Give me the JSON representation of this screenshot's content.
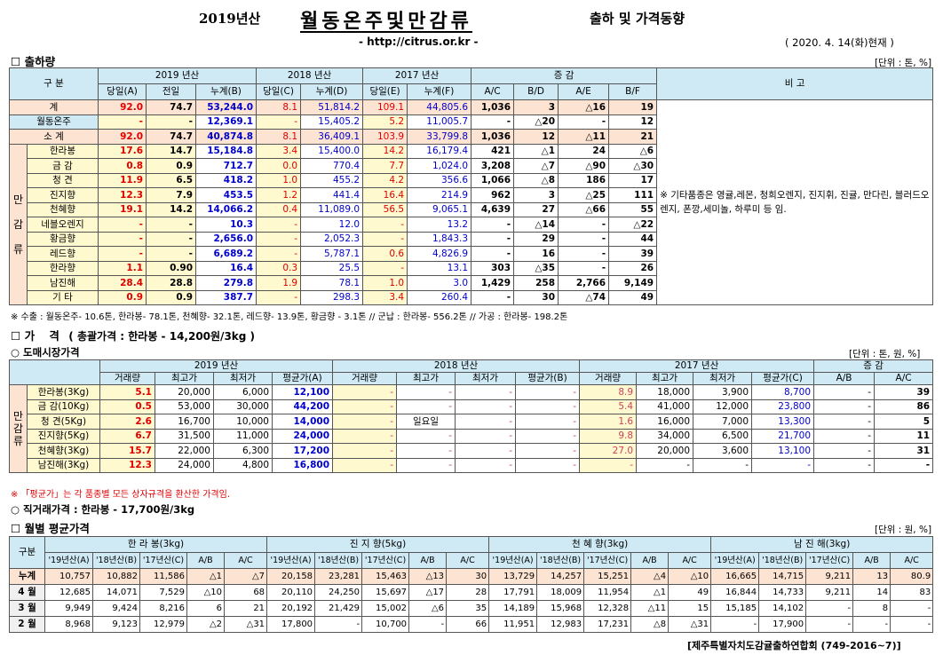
{
  "header": {
    "title_prefix": "2019년산",
    "title_main": "월동온주및만감류",
    "title_suffix": "출하 및 가격동향",
    "url": "- http://citrus.or.kr -",
    "date": "( 2020. 4. 14(화)현재 )"
  },
  "sec1": {
    "title": "출하량",
    "unit": "[단위 : 톤, %]",
    "h_gubun": "구  분",
    "h_y2019": "2019 년산",
    "h_y2018": "2018 년산",
    "h_y2017": "2017 년산",
    "h_inc": "증  감",
    "h_bigo": "비 고",
    "sub": [
      "당일(A)",
      "전일",
      "누계(B)",
      "당일(C)",
      "누계(D)",
      "당일(E)",
      "누계(F)",
      "A/C",
      "B/D",
      "A/E",
      "B/F"
    ],
    "side_label": [
      "만",
      "감",
      "류"
    ],
    "rows": [
      {
        "name": "계",
        "v": [
          "92.0",
          "74.7",
          "53,244.0",
          "8.1",
          "51,814.2",
          "109.1",
          "44,805.6",
          "1,036",
          "3",
          "△16",
          "19"
        ]
      },
      {
        "name": "월동온주",
        "v": [
          "-",
          "-",
          "12,369.1",
          "-",
          "15,405.2",
          "5.2",
          "11,005.7",
          "-",
          "△20",
          "-",
          "12"
        ]
      },
      {
        "name": "소  계",
        "v": [
          "92.0",
          "74.7",
          "40,874.8",
          "8.1",
          "36,409.1",
          "103.9",
          "33,799.8",
          "1,036",
          "12",
          "△11",
          "21"
        ]
      },
      {
        "name": "한라봉",
        "v": [
          "17.6",
          "14.7",
          "15,184.8",
          "3.4",
          "15,400.0",
          "14.2",
          "16,179.4",
          "421",
          "△1",
          "24",
          "△6"
        ]
      },
      {
        "name": "금  감",
        "v": [
          "0.8",
          "0.9",
          "712.7",
          "0.0",
          "770.4",
          "7.7",
          "1,024.0",
          "3,208",
          "△7",
          "△90",
          "△30"
        ]
      },
      {
        "name": "청  견",
        "v": [
          "11.9",
          "6.5",
          "418.2",
          "1.0",
          "455.2",
          "4.2",
          "356.6",
          "1,066",
          "△8",
          "186",
          "17"
        ]
      },
      {
        "name": "진지향",
        "v": [
          "12.3",
          "7.9",
          "453.5",
          "1.2",
          "441.4",
          "16.4",
          "214.9",
          "962",
          "3",
          "△25",
          "111"
        ]
      },
      {
        "name": "천혜향",
        "v": [
          "19.1",
          "14.2",
          "14,066.2",
          "0.4",
          "11,089.0",
          "56.5",
          "9,065.1",
          "4,639",
          "27",
          "△66",
          "55"
        ]
      },
      {
        "name": "네블오렌지",
        "v": [
          "-",
          "-",
          "10.3",
          "-",
          "12.0",
          "-",
          "13.2",
          "-",
          "△14",
          "-",
          "△22"
        ]
      },
      {
        "name": "황금향",
        "v": [
          "-",
          "-",
          "2,656.0",
          "-",
          "2,052.3",
          "-",
          "1,843.3",
          "-",
          "29",
          "-",
          "44"
        ]
      },
      {
        "name": "레드향",
        "v": [
          "-",
          "-",
          "6,689.2",
          "-",
          "5,787.1",
          "0.6",
          "4,826.9",
          "-",
          "16",
          "-",
          "39"
        ]
      },
      {
        "name": "한라향",
        "v": [
          "1.1",
          "0.90",
          "16.4",
          "0.3",
          "25.5",
          "-",
          "13.1",
          "303",
          "△35",
          "-",
          "26"
        ]
      },
      {
        "name": "남진해",
        "v": [
          "28.4",
          "28.8",
          "279.8",
          "1.9",
          "78.1",
          "1.0",
          "3.0",
          "1,429",
          "258",
          "2,766",
          "9,149"
        ]
      },
      {
        "name": "기  타",
        "v": [
          "0.9",
          "0.9",
          "387.7",
          "-",
          "298.3",
          "3.4",
          "260.4",
          "-",
          "30",
          "△74",
          "49"
        ]
      }
    ],
    "bigo_text": "※ 기타품종은 영귤,레몬, 청희오렌지, 진지휘, 진귤, 만다린, 블러드오렌지, 폰깡,세미놀, 하루미 등 임.",
    "note": "※ 수출 : 월동온주- 10.6톤, 한라봉- 78.1톤, 천혜향- 32.1톤, 레드향- 13.9톤, 황금향 - 3.1톤  // 군납 : 한라봉- 556.2톤 // 가공 : 한라봉- 198.2톤"
  },
  "sec2": {
    "title": "가  격",
    "subtitle": "( 총괄가격 : 한라봉 - 14,200원/3kg )",
    "sub_title": "○ 도매시장가격",
    "unit": "[단위 : 톤, 원, %]",
    "h_y2019": "2019 년산",
    "h_y2018": "2018 년산",
    "h_y2017": "2017 년산",
    "h_inc": "증  감",
    "sub": [
      "거래량",
      "최고가",
      "최저가",
      "평균가(A)",
      "거래량",
      "최고가",
      "최저가",
      "평균가(B)",
      "거래량",
      "최고가",
      "최저가",
      "평균가(C)",
      "A/B",
      "A/C"
    ],
    "side_label": [
      "만",
      "감",
      "류"
    ],
    "rows": [
      {
        "name": "한라봉(3Kg)",
        "v": [
          "5.1",
          "20,000",
          "6,000",
          "12,100",
          "-",
          "-",
          "-",
          "-",
          "8.9",
          "18,000",
          "3,900",
          "8,700",
          "-",
          "39"
        ]
      },
      {
        "name": "금 감(10Kg)",
        "v": [
          "0.5",
          "53,000",
          "30,000",
          "44,200",
          "-",
          "-",
          "-",
          "-",
          "5.4",
          "41,000",
          "12,000",
          "23,800",
          "-",
          "86"
        ]
      },
      {
        "name": "청 견(5Kg)",
        "v": [
          "2.6",
          "16,700",
          "10,000",
          "14,000",
          "-",
          "일요일",
          "-",
          "-",
          "1.6",
          "16,000",
          "7,000",
          "13,300",
          "-",
          "5"
        ]
      },
      {
        "name": "진지향(5Kg)",
        "v": [
          "6.7",
          "31,500",
          "11,000",
          "24,000",
          "-",
          "-",
          "-",
          "-",
          "9.8",
          "34,000",
          "6,500",
          "21,700",
          "-",
          "11"
        ]
      },
      {
        "name": "천혜향(3Kg)",
        "v": [
          "15.7",
          "22,000",
          "6,300",
          "17,200",
          "-",
          "-",
          "-",
          "-",
          "27.0",
          "20,000",
          "3,600",
          "13,100",
          "-",
          "31"
        ]
      },
      {
        "name": "남진해(3Kg)",
        "v": [
          "12.3",
          "24,000",
          "4,800",
          "16,800",
          "-",
          "-",
          "-",
          "-",
          "-",
          "-",
          "-",
          "-",
          "-",
          "-"
        ]
      }
    ],
    "note": "※ 「평균가」는 각 품종별 모든 상자규격을 환산한 가격임.",
    "direct": "○ 직거래가격 : 한라봉 - 17,700원/3kg"
  },
  "sec3": {
    "title": "월별 평균가격",
    "unit": "[단위 : 원, %]",
    "h_gubun": "구분",
    "groups": [
      "한 라 봉(3kg)",
      "진 지 향(5kg)",
      "천 혜 향(3kg)",
      "남 진 해(3kg)"
    ],
    "sub": [
      "'19년산(A)",
      "'18년산(B)",
      "'17년산(C)",
      "A/B",
      "A/C"
    ],
    "rows": [
      {
        "name": "누계",
        "v": [
          "10,757",
          "10,882",
          "11,586",
          "△1",
          "△7",
          "20,158",
          "23,281",
          "15,463",
          "△13",
          "30",
          "13,729",
          "14,257",
          "15,251",
          "△4",
          "△10",
          "16,665",
          "14,715",
          "9,211",
          "13",
          "80.9"
        ]
      },
      {
        "name": "4 월",
        "v": [
          "12,685",
          "14,071",
          "7,529",
          "△10",
          "68",
          "20,110",
          "24,250",
          "15,697",
          "△17",
          "28",
          "17,791",
          "18,009",
          "11,954",
          "△1",
          "49",
          "16,844",
          "14,733",
          "9,211",
          "14",
          "83"
        ]
      },
      {
        "name": "3 월",
        "v": [
          "9,949",
          "9,424",
          "8,216",
          "6",
          "21",
          "20,192",
          "21,429",
          "15,002",
          "△6",
          "35",
          "14,189",
          "15,968",
          "12,328",
          "△11",
          "15",
          "15,185",
          "14,102",
          "-",
          "8",
          "-"
        ]
      },
      {
        "name": "2 월",
        "v": [
          "8,968",
          "9,123",
          "12,979",
          "△2",
          "△31",
          "17,800",
          "-",
          "10,700",
          "-",
          "66",
          "11,951",
          "12,983",
          "17,231",
          "△8",
          "△31",
          "-",
          "17,900",
          "-",
          "-",
          "-"
        ]
      }
    ],
    "footer": "[제주특별자치도감귤출하연합회 (749-2016~7)]"
  }
}
